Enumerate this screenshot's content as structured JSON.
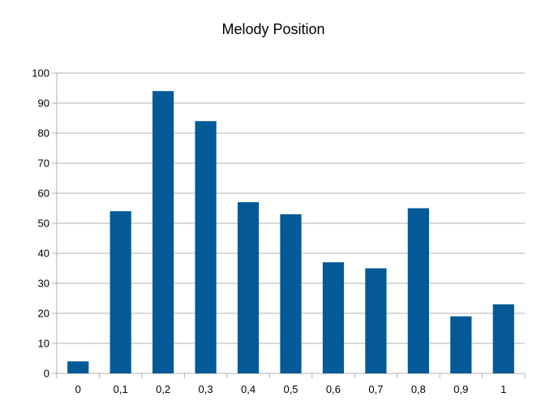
{
  "chart_data": {
    "type": "bar",
    "title": "Melody Position",
    "xlabel": "",
    "ylabel": "",
    "categories": [
      "0",
      "0,1",
      "0,2",
      "0,3",
      "0,4",
      "0,5",
      "0,6",
      "0,7",
      "0,8",
      "0,9",
      "1"
    ],
    "values": [
      4,
      54,
      94,
      84,
      57,
      53,
      37,
      35,
      55,
      19,
      23
    ],
    "ylim": [
      0,
      100
    ],
    "yticks": [
      "0",
      "10",
      "20",
      "30",
      "40",
      "50",
      "60",
      "70",
      "80",
      "90",
      "100"
    ],
    "grid": true,
    "legend": "none",
    "bar_color": "#045a97"
  }
}
